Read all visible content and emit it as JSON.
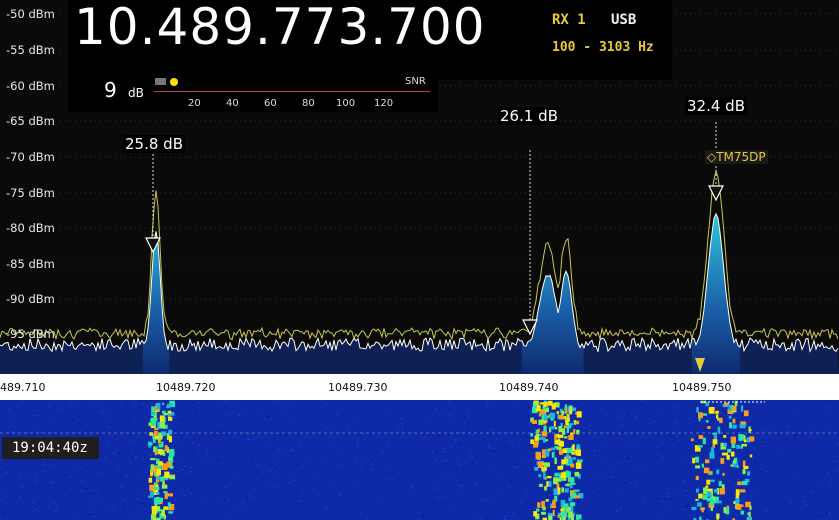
{
  "vfo": {
    "frequency": "10.489.773.700",
    "rx": "RX 1",
    "mode": "USB",
    "bandwidth": "100 - 3103 Hz"
  },
  "snr": {
    "value": "9",
    "unit": "dB",
    "label": "SNR",
    "scale": [
      "20",
      "40",
      "60",
      "80",
      "100",
      "120"
    ]
  },
  "dbm_scale": [
    "-50 dBm",
    "-55 dBm",
    "-60 dBm",
    "-65 dBm",
    "-70 dBm",
    "-75 dBm",
    "-80 dBm",
    "-85 dBm",
    "-90 dBm",
    "-95 dBm"
  ],
  "peaks": [
    {
      "label": "25.8 dB"
    },
    {
      "label": "26.1 dB"
    },
    {
      "label": "32.4 dB"
    }
  ],
  "marker": {
    "label": "◇TM75DP"
  },
  "freq_axis": [
    "489.710",
    "10489.720",
    "10489.730",
    "10489.740",
    "10489.750"
  ],
  "waterfall": {
    "time": "19:04:40z"
  },
  "colors": {
    "spectrum_fill": "#0f2a6e",
    "signal_cyan": "#2ec4d8",
    "peak_hold": "#c8c84a",
    "accent_yellow": "#e8c93a",
    "trace": "#ffffff"
  }
}
